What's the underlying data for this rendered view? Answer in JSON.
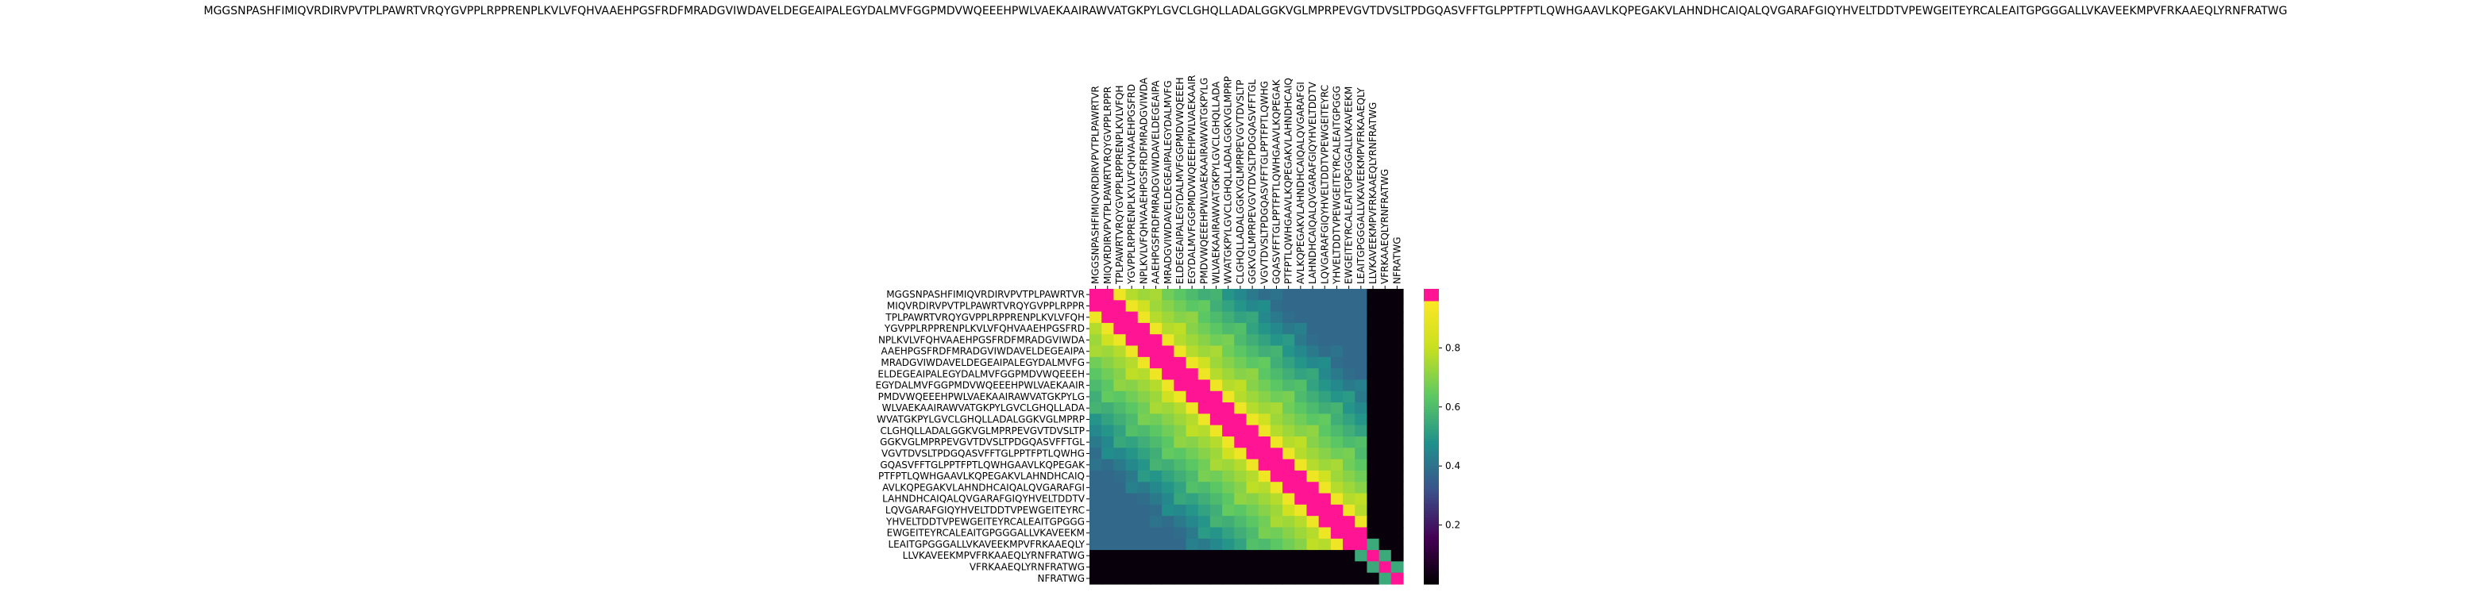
{
  "chart_data": {
    "type": "heatmap",
    "title": "MGGSNPASHFIMIQVRDIRVPVTPLPAWRTVRQYGVPPLRPPRENPLKVLVFQHVAAEHPGSFRDFMRADGVIWDAVELDEGEAIPALEGYDALMVFGGPMDVWQEEEHPWLVAEKAAIRAWVATGKPYLGVCLGHQLLADALGGKVGLMPRPEVGVTDVSLTPDGQASVFFTGLPPTFPTLQWHGAAVLKQPEGAKVLAHNDHCAIQALQVGARAFGIQYHVELTDDTVPEWGEITEYRCALEAITGPGGGALLVKAVEEKMPVFRKAAEQLYRNFRATWG",
    "labels": [
      "MGGSNPASHFIMIQVRDIRVPVTPLPAWRTVR",
      "MIQVRDIRVPVTPLPAWRTVRQYGVPPLRPPR",
      "TPLPAWRTVRQYGVPPLRPPRENPLKVLVFQH",
      "YGVPPLRPPRENPLKVLVFQHVAAEHPGSFRD",
      "NPLKVLVFQHVAAEHPGSFRDFMRADGVIWDA",
      "AAEHPGSFRDFMRADGVIWDAVELDEGEAIPA",
      "MRADGVIWDAVELDEGEAIPALEGYDALMVFG",
      "ELDEGEAIPALEGYDALMVFGGPMDVWQEEEH",
      "EGYDALMVFGGPMDVWQEEEHPWLVAEKAAIR",
      "PMDVWQEEEHPWLVAEKAAIRAWVATGKPYLG",
      "WLVAEKAAIRAWVATGKPYLGVCLGHQLLADA",
      "WVATGKPYLGVCLGHQLLADALGGKVGLMPRP",
      "CLGHQLLADALGGKVGLMPRPEVGVTDVSLTP",
      "GGKVGLMPRPEVGVTDVSLTPDGQASVFFTGL",
      "VGVTDVSLTPDGQASVFFTGLPPTFPTLQWHG",
      "GQASVFFTGLPPTFPTLQWHGAAVLKQPEGAK",
      "PTFPTLQWHGAAVLKQPEGAKVLAHNDHCAIQ",
      "AVLKQPEGAKVLAHNDHCAIQALQVGARAFGI",
      "LAHNDHCAIQALQVGARAFGIQYHVELTDDTV",
      "LQVGARAFGIQYHVELTDDTVPEWGEITEYRC",
      "YHVELTDDTVPEWGEITEYRCALEAITGPGGG",
      "EWGEITEYRCALEAITGPGGGALLVKAVEEKM",
      "LEAITGPGGGALLVKAVEEKMPVFRKAAEQLY",
      "LLVKAVEEKMPVFRKAAEQLYRNFRATWG",
      "VFRKAAEQLYRNFRATWG",
      "NFRATWG"
    ],
    "colorbar": {
      "ticks": [
        0.2,
        0.4,
        0.6,
        0.8
      ],
      "range": [
        0.0,
        1.0
      ],
      "colors": [
        "#000000",
        "#440154",
        "#3b528b",
        "#21918c",
        "#5ec962",
        "#c8e020",
        "#fde725",
        "#ff1493"
      ]
    },
    "grid": false,
    "legend": "colorbar-right"
  }
}
